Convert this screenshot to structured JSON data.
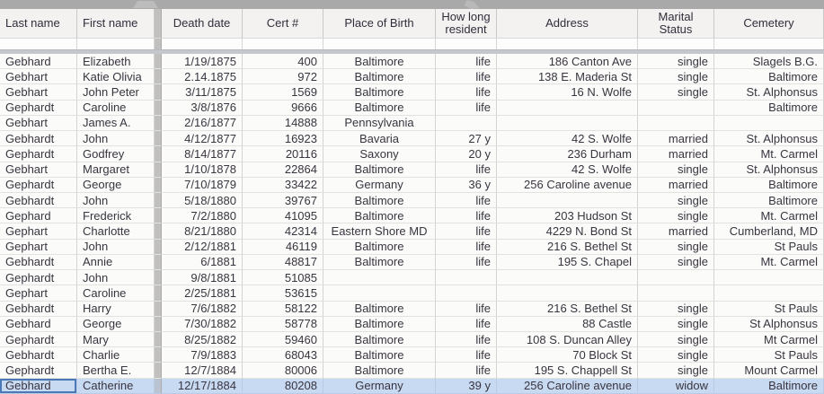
{
  "topbar": {
    "icons": [
      "grip-diamond-icon",
      "grip-diagonal-icon"
    ]
  },
  "colors": {
    "chrome_gray": "#a9a9a9",
    "header_bg": "#f3f2f1",
    "cell_bg": "#fbfbfa",
    "gridline": "#d4d4d3",
    "hidden_column_gray": "#c1c0bf",
    "selection_bg": "#c8daf2",
    "active_cell_border": "#4c79b5",
    "text": "#39343f"
  },
  "table": {
    "columns": [
      {
        "label": "Last name",
        "align": "left"
      },
      {
        "label": "First name",
        "align": "left"
      },
      {
        "label": "Death date",
        "align": "right"
      },
      {
        "label": "Cert #",
        "align": "right"
      },
      {
        "label": "Place of Birth",
        "align": "center"
      },
      {
        "label": "How long resident",
        "align": "right"
      },
      {
        "label": "Address",
        "align": "right"
      },
      {
        "label": "Marital Status",
        "align": "right"
      },
      {
        "label": "Cemetery",
        "align": "right"
      }
    ],
    "selected_row": {
      "index": 21,
      "active_cell_col": 0
    },
    "rows": [
      {
        "cells": [
          "Gebhard",
          "Elizabeth",
          "1/19/1875",
          "400",
          "Baltimore",
          "life",
          "186 Canton Ave",
          "single",
          "Slagels B.G."
        ]
      },
      {
        "cells": [
          "Gebhart",
          "Katie Olivia",
          "2.14.1875",
          "972",
          "Baltimore",
          "life",
          "138 E. Maderia St",
          "single",
          "Baltimore"
        ]
      },
      {
        "cells": [
          "Gebhart",
          "John Peter",
          "3/11/1875",
          "1569",
          "Baltimore",
          "life",
          "16 N. Wolfe",
          "single",
          "St. Alphonsus"
        ]
      },
      {
        "cells": [
          "Gephardt",
          "Caroline",
          "3/8/1876",
          "9666",
          "Baltimore",
          "life",
          "",
          "",
          "Baltimore"
        ]
      },
      {
        "cells": [
          "Gebhart",
          "James A.",
          "2/16/1877",
          "14888",
          "Pennsylvania",
          "",
          "",
          "",
          ""
        ]
      },
      {
        "cells": [
          "Gebhardt",
          "John",
          "4/12/1877",
          "16923",
          "Bavaria",
          "27 y",
          "42 S. Wolfe",
          "married",
          "St. Alphonsus"
        ]
      },
      {
        "cells": [
          "Gephardt",
          "Godfrey",
          "8/14/1877",
          "20116",
          "Saxony",
          "20 y",
          "236 Durham",
          "married",
          "Mt. Carmel"
        ]
      },
      {
        "cells": [
          "Gebhart",
          "Margaret",
          "1/10/1878",
          "22864",
          "Baltimore",
          "life",
          "42 S. Wolfe",
          "single",
          "St. Alphonsus"
        ]
      },
      {
        "cells": [
          "Gephardt",
          "George",
          "7/10/1879",
          "33422",
          "Germany",
          "36 y",
          "256 Caroline avenue",
          "married",
          "Baltimore"
        ]
      },
      {
        "cells": [
          "Gebhardt",
          "John",
          "5/18/1880",
          "39767",
          "Baltimore",
          "life",
          "",
          "single",
          "Baltimore"
        ]
      },
      {
        "cells": [
          "Gephard",
          "Frederick",
          "7/2/1880",
          "41095",
          "Baltimore",
          "life",
          "203 Hudson St",
          "single",
          "Mt. Carmel"
        ]
      },
      {
        "cells": [
          "Gephart",
          "Charlotte",
          "8/21/1880",
          "42314",
          "Eastern Shore MD",
          "life",
          "4229 N. Bond St",
          "married",
          "Cumberland, MD"
        ]
      },
      {
        "cells": [
          "Gephart",
          "John",
          "2/12/1881",
          "46119",
          "Baltimore",
          "life",
          "216 S. Bethel St",
          "single",
          "St Pauls"
        ]
      },
      {
        "cells": [
          "Gebhardt",
          "Annie",
          "6/1881",
          "48817",
          "Baltimore",
          "life",
          "195 S. Chapel",
          "single",
          "Mt. Carmel"
        ]
      },
      {
        "cells": [
          "Gephardt",
          "John",
          "9/8/1881",
          "51085",
          "",
          "",
          "",
          "",
          ""
        ]
      },
      {
        "cells": [
          "Gephart",
          "Caroline",
          "2/25/1881",
          "53615",
          "",
          "",
          "",
          "",
          ""
        ]
      },
      {
        "cells": [
          "Gebhardt",
          "Harry",
          "7/6/1882",
          "58122",
          "Baltimore",
          "life",
          "216 S. Bethel St",
          "single",
          "St Pauls"
        ]
      },
      {
        "cells": [
          "Gebhard",
          "George",
          "7/30/1882",
          "58778",
          "Baltimore",
          "life",
          "88 Castle",
          "single",
          "St Alphonsus"
        ]
      },
      {
        "cells": [
          "Gephardt",
          "Mary",
          "8/25/1882",
          "59460",
          "Baltimore",
          "life",
          "108 S. Duncan Alley",
          "single",
          "Mt Carmel"
        ]
      },
      {
        "cells": [
          "Gebhardt",
          "Charlie",
          "7/9/1883",
          "68043",
          "Baltimore",
          "life",
          "70 Block St",
          "single",
          "St Pauls"
        ]
      },
      {
        "cells": [
          "Gephardt",
          "Bertha E.",
          "12/7/1884",
          "80006",
          "Baltimore",
          "life",
          "195 S. Chappell St",
          "single",
          "Mount Carmel"
        ]
      },
      {
        "cells": [
          "Gebhard",
          "Catherine",
          "12/17/1884",
          "80208",
          "Germany",
          "39 y",
          "256 Caroline avenue",
          "widow",
          "Baltimore"
        ]
      }
    ]
  }
}
